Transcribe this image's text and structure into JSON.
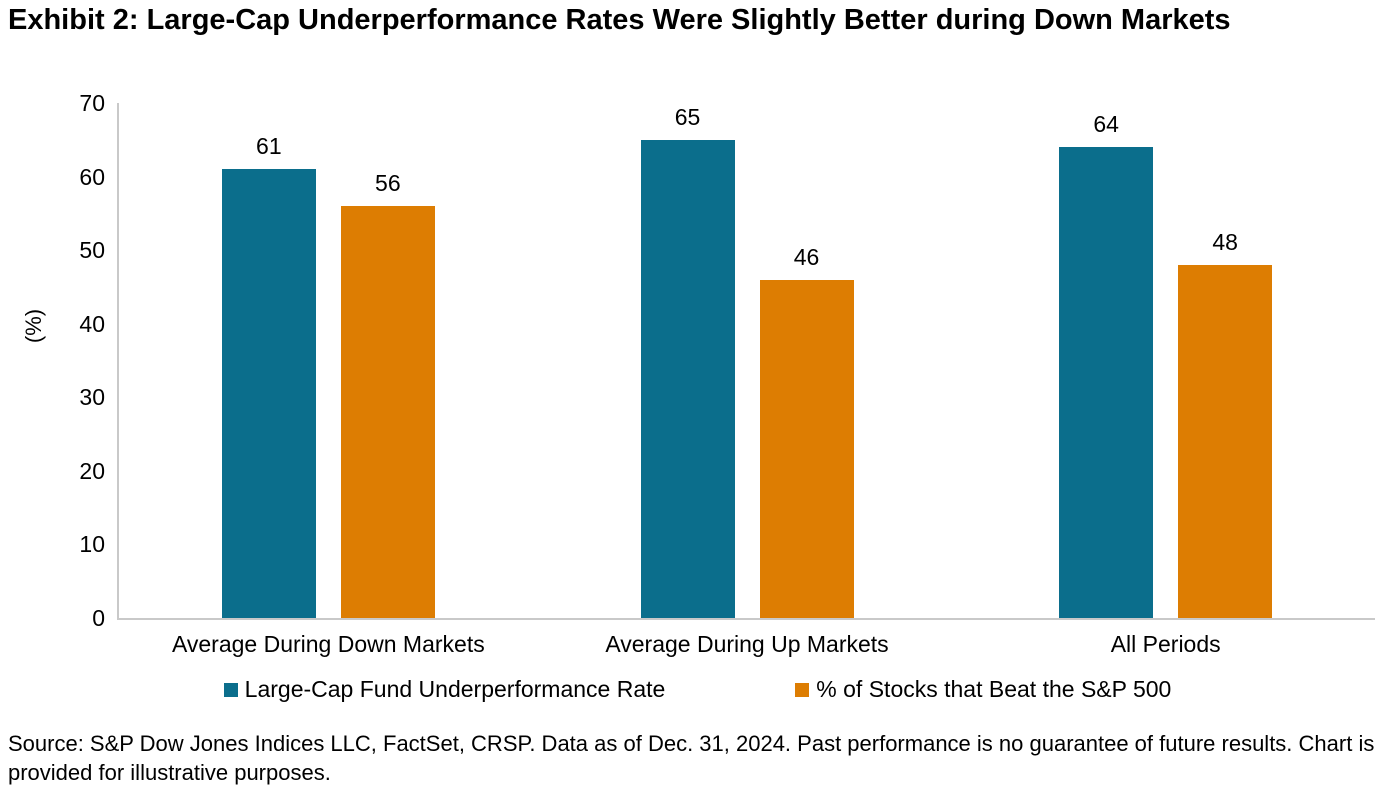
{
  "source_note": "Source: S&P Dow Jones Indices LLC, FactSet, CRSP. Data as of Dec. 31, 2024. Past performance is no guarantee of future results. Chart is provided for illustrative purposes.",
  "chart_data": {
    "type": "bar",
    "title": "Exhibit 2: Large-Cap Underperformance Rates Were Slightly Better during Down Markets",
    "categories": [
      "Average During Down Markets",
      "Average During Up Markets",
      "All Periods"
    ],
    "series": [
      {
        "name": "Large-Cap Fund Underperformance Rate",
        "color": "#0B6E8C",
        "values": [
          61,
          65,
          64
        ]
      },
      {
        "name": "% of Stocks that Beat the S&P 500",
        "color": "#DD7D02",
        "values": [
          56,
          46,
          48
        ]
      }
    ],
    "xlabel": "",
    "ylabel": "(%)",
    "ylim": [
      0,
      70
    ],
    "yticks": [
      0,
      10,
      20,
      30,
      40,
      50,
      60,
      70
    ],
    "grid": false,
    "legend_position": "bottom",
    "bar_value_labels": true,
    "axis_color": "#C9C9C9",
    "text_color": "#000000"
  }
}
